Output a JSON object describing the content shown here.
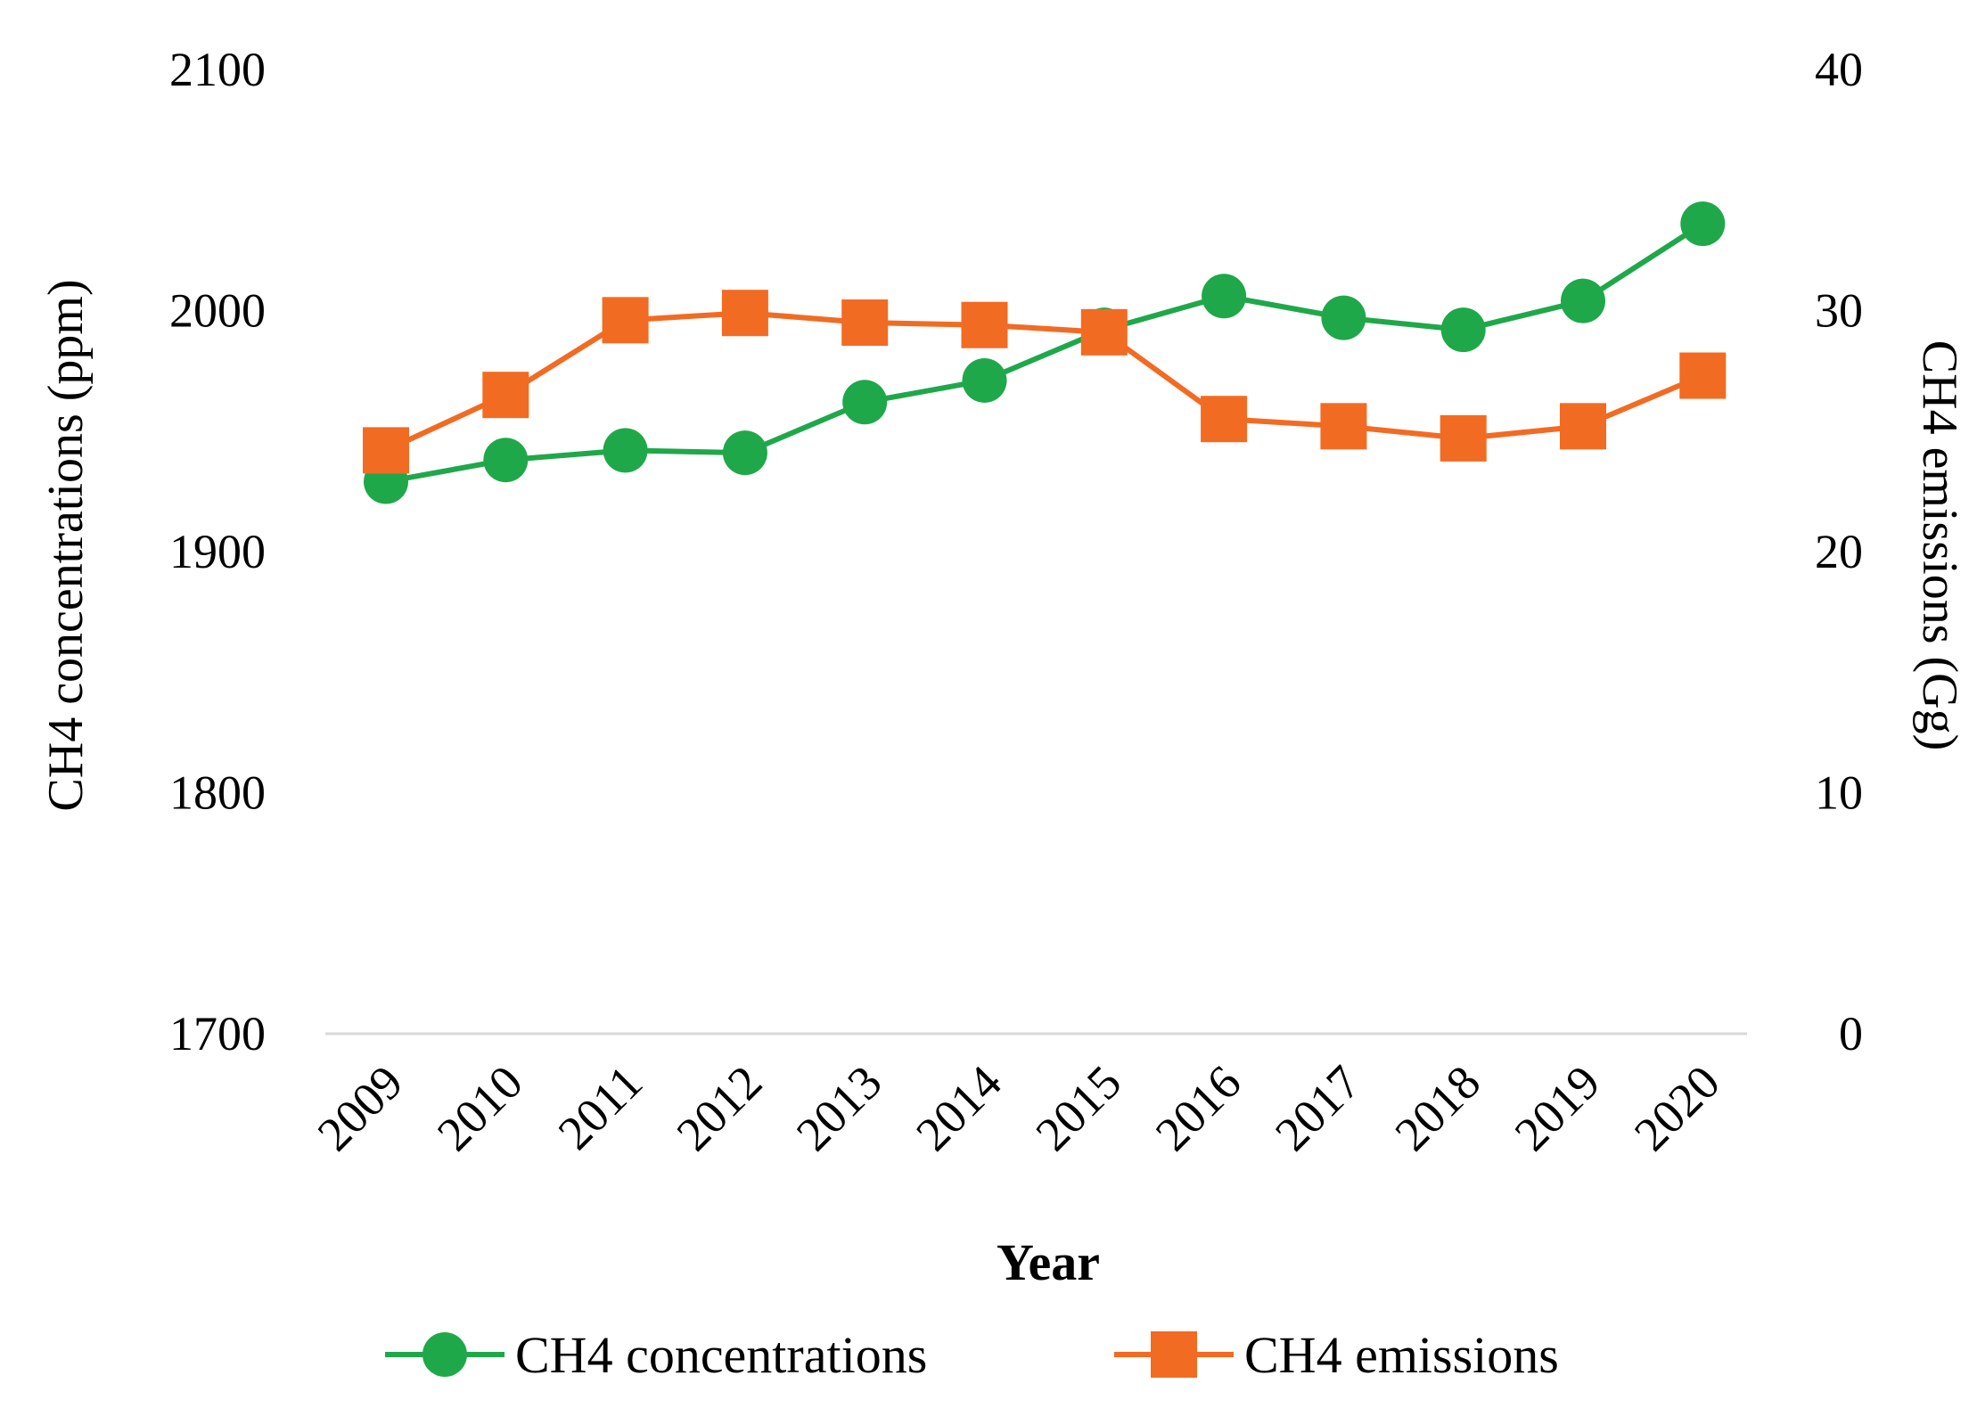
{
  "chart_data": {
    "type": "line",
    "xlabel": "Year",
    "ylabel_left": "CH4 concentrations (ppm)",
    "ylabel_right": "CH4 emissions (Gg)",
    "categories": [
      "2009",
      "2010",
      "2011",
      "2012",
      "2013",
      "2014",
      "2015",
      "2016",
      "2017",
      "2018",
      "2019",
      "2020"
    ],
    "ylim_left": [
      1700,
      2100
    ],
    "yticks_left": [
      "1700",
      "1800",
      "1900",
      "2000",
      "2100"
    ],
    "ylim_right": [
      0,
      40
    ],
    "yticks_right": [
      "0",
      "10",
      "20",
      "30",
      "40"
    ],
    "grid": false,
    "legend_position": "bottom",
    "series": [
      {
        "name": "CH4 concentrations",
        "axis": "left",
        "marker": "circle",
        "color": "#1fa84a",
        "values": [
          1929,
          1938,
          1942,
          1941,
          1962,
          1971,
          1992,
          2006,
          1997,
          1992,
          2004,
          2036
        ]
      },
      {
        "name": "CH4 emissions",
        "axis": "right",
        "marker": "square",
        "color": "#f26b22",
        "values": [
          24.2,
          26.5,
          29.6,
          29.9,
          29.5,
          29.4,
          29.1,
          25.5,
          25.2,
          24.7,
          25.2,
          27.3
        ]
      }
    ]
  }
}
